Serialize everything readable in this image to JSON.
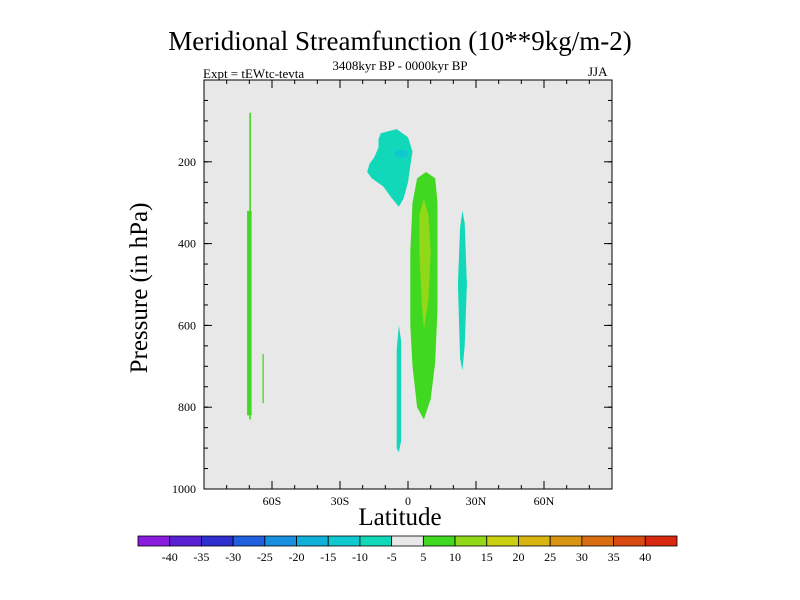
{
  "chart_data": {
    "type": "contour",
    "title": "Meridional Streamfunction (10**9kg/m-2)",
    "subtitle": "3408kyr BP - 0000kyr BP",
    "experiment_label": "Expt = tEWtc-tevta",
    "season": "JJA",
    "xlabel": "Latitude",
    "ylabel": "Pressure (in hPa)",
    "xlim": [
      -90,
      90
    ],
    "ylim": [
      1000,
      0
    ],
    "x_major_ticks": [
      -60,
      -30,
      0,
      30,
      60
    ],
    "x_tick_labels": [
      "60S",
      "30S",
      "0",
      "30N",
      "60N"
    ],
    "x_minor_step": 10,
    "y_major_ticks": [
      200,
      400,
      600,
      800,
      1000
    ],
    "y_tick_labels": [
      "200",
      "400",
      "600",
      "800",
      "1000"
    ],
    "y_minor_step": 50,
    "colorbar_levels": [
      -40,
      -35,
      -30,
      -25,
      -20,
      -15,
      -10,
      -5,
      5,
      10,
      15,
      20,
      25,
      30,
      35,
      40
    ],
    "colorbar_labels": [
      "-40",
      "-35",
      "-30",
      "-25",
      "-20",
      "-15",
      "-10",
      "-5",
      "5",
      "10",
      "15",
      "20",
      "25",
      "30",
      "35",
      "40"
    ],
    "colorbar_colors": [
      "#8a1ce0",
      "#5a20d6",
      "#3030d0",
      "#2060e0",
      "#1890e0",
      "#10b0d8",
      "#10c8d0",
      "#10d8b8",
      "#e8e8e8",
      "#40d820",
      "#90d818",
      "#c8d010",
      "#d8b410",
      "#d89410",
      "#d86e10",
      "#d84a10",
      "#d82810"
    ],
    "background_color": "#e8e8e8",
    "contour_regions": [
      {
        "name": "negative-cell-upper",
        "level": "-10 to -5",
        "color": "#10d8b8",
        "points": [
          [
            -12,
            130
          ],
          [
            -5,
            120
          ],
          [
            0,
            140
          ],
          [
            2,
            175
          ],
          [
            1,
            210
          ],
          [
            0,
            250
          ],
          [
            -2,
            290
          ],
          [
            -4,
            310
          ],
          [
            -7,
            290
          ],
          [
            -11,
            260
          ],
          [
            -16,
            240
          ],
          [
            -18,
            225
          ],
          [
            -17,
            205
          ],
          [
            -15,
            190
          ],
          [
            -13,
            165
          ],
          [
            -13,
            145
          ]
        ]
      },
      {
        "name": "negative-cell-core",
        "level": "-15 to -10",
        "color": "#10c8d0",
        "points": [
          [
            -6,
            175
          ],
          [
            -3,
            170
          ],
          [
            0,
            175
          ],
          [
            0,
            185
          ],
          [
            -3,
            190
          ],
          [
            -6,
            185
          ]
        ]
      },
      {
        "name": "negative-cell-lower",
        "level": "-10 to -5",
        "color": "#10d8b8",
        "points": [
          [
            -4,
            600
          ],
          [
            -3,
            640
          ],
          [
            -3,
            760
          ],
          [
            -3,
            880
          ],
          [
            -4,
            910
          ],
          [
            -5,
            900
          ],
          [
            -5,
            800
          ],
          [
            -5,
            660
          ]
        ]
      },
      {
        "name": "positive-cell-equatorial",
        "level": "5 to 10",
        "color": "#40d820",
        "points": [
          [
            8,
            225
          ],
          [
            12,
            240
          ],
          [
            13,
            300
          ],
          [
            13,
            420
          ],
          [
            13,
            560
          ],
          [
            12,
            690
          ],
          [
            10,
            780
          ],
          [
            7,
            830
          ],
          [
            4,
            800
          ],
          [
            2,
            700
          ],
          [
            1,
            600
          ],
          [
            1,
            420
          ],
          [
            2,
            300
          ],
          [
            4,
            240
          ]
        ]
      },
      {
        "name": "positive-cell-equatorial-core",
        "level": "10 to 15",
        "color": "#90d818",
        "points": [
          [
            7,
            290
          ],
          [
            9,
            330
          ],
          [
            10,
            420
          ],
          [
            9,
            540
          ],
          [
            7,
            610
          ],
          [
            6,
            540
          ],
          [
            5,
            420
          ],
          [
            5,
            330
          ]
        ]
      },
      {
        "name": "negative-cell-30n",
        "level": "-10 to -5",
        "color": "#10d8b8",
        "points": [
          [
            24,
            320
          ],
          [
            25,
            350
          ],
          [
            26,
            500
          ],
          [
            25,
            650
          ],
          [
            24,
            710
          ],
          [
            23,
            680
          ],
          [
            22,
            500
          ],
          [
            23,
            360
          ]
        ]
      },
      {
        "name": "positive-strip-70s",
        "level": "5 to 10",
        "color": "#40d820",
        "points": [
          [
            -70,
            80
          ],
          [
            -69.3,
            80
          ],
          [
            -69.3,
            830
          ],
          [
            -70,
            830
          ]
        ]
      },
      {
        "name": "positive-strip-70s-lower",
        "level": "5 to 10",
        "color": "#40d820",
        "points": [
          [
            -71,
            320
          ],
          [
            -69,
            320
          ],
          [
            -69,
            820
          ],
          [
            -71,
            820
          ]
        ]
      },
      {
        "name": "positive-strip-65s",
        "level": "5 to 10",
        "color": "#40d820",
        "points": [
          [
            -64.2,
            670
          ],
          [
            -63.6,
            670
          ],
          [
            -63.6,
            790
          ],
          [
            -64.2,
            790
          ]
        ]
      }
    ]
  }
}
